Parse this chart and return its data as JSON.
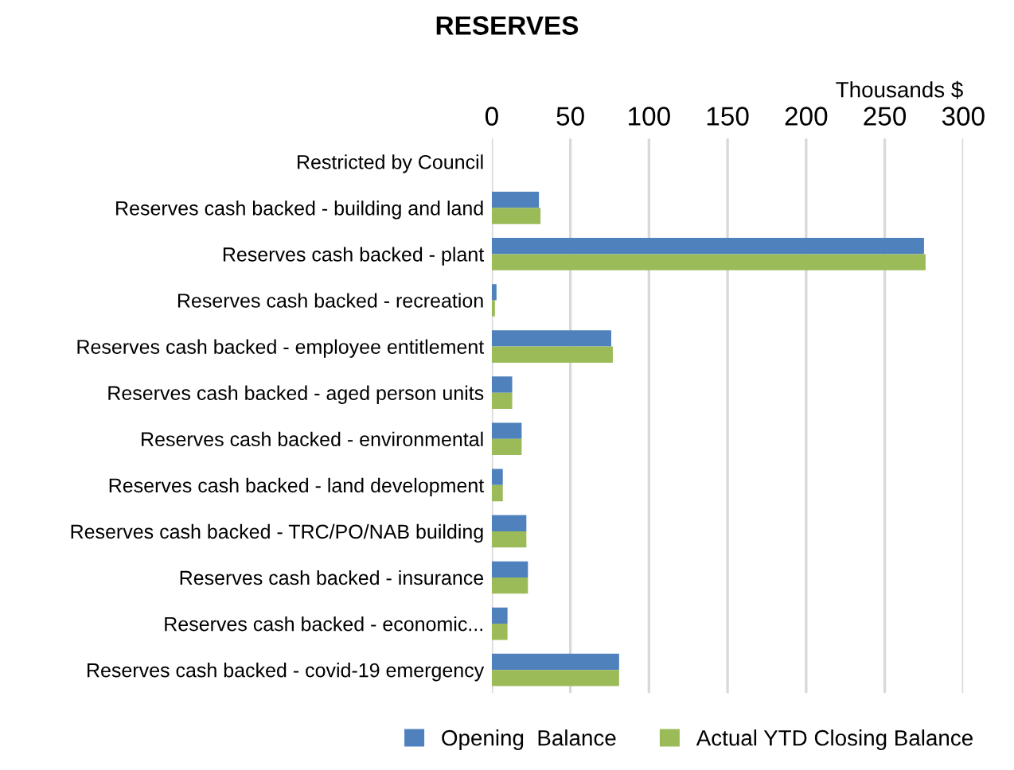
{
  "chart_data": {
    "type": "bar",
    "orientation": "horizontal",
    "title": "RESERVES",
    "xlabel": "Thousands $",
    "categories": [
      "Restricted by Council",
      "Reserves cash backed - building and land",
      "Reserves cash backed - plant",
      "Reserves cash backed - recreation",
      "Reserves cash backed - employee entitlement",
      "Reserves cash backed - aged person units",
      "Reserves cash backed - environmental",
      "Reserves cash backed - land development",
      "Reserves cash backed - TRC/PO/NAB building",
      "Reserves cash backed - insurance",
      "Reserves cash backed - economic...",
      "Reserves cash backed - covid-19 emergency"
    ],
    "series": [
      {
        "name": "Opening  Balance",
        "color": "#4f81bd",
        "values": [
          0,
          30,
          275,
          3,
          76,
          13,
          19,
          7,
          22,
          23,
          10,
          81
        ]
      },
      {
        "name": "Actual YTD Closing Balance",
        "color": "#9bbb59",
        "values": [
          0,
          31,
          276,
          2,
          77,
          13,
          19,
          7,
          22,
          23,
          10,
          81
        ]
      }
    ],
    "xlim": [
      0,
      300
    ],
    "xticks": [
      0,
      50,
      100,
      150,
      200,
      250,
      300
    ],
    "grid": "x",
    "legend": "bottom"
  }
}
